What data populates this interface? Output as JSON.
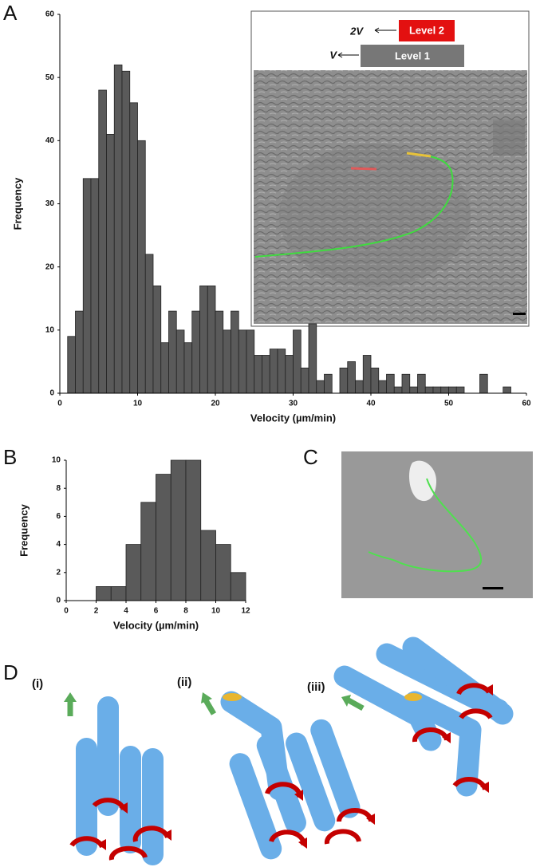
{
  "panels": {
    "a": "A",
    "b": "B",
    "c": "C",
    "d": "D"
  },
  "inset": {
    "level2_speed": "2V",
    "level2": "Level 2",
    "level1_speed": "V",
    "level1": "Level 1"
  },
  "diagram": {
    "labels": [
      "(i)",
      "(ii)",
      "(iii)"
    ]
  },
  "chart_data": [
    {
      "type": "histogram",
      "y_label": "Frequency",
      "x_label": "Velocity (µm/min)",
      "color": "#5a5a5a",
      "bins": [
        1,
        2,
        3,
        4,
        5,
        6,
        7,
        8,
        9,
        10,
        11,
        12,
        13,
        14,
        15,
        16,
        17,
        18,
        19,
        20,
        21,
        22,
        23,
        24,
        25,
        26,
        27,
        28,
        29,
        30,
        31,
        32,
        33,
        34,
        35,
        36,
        37,
        38,
        39,
        40,
        41,
        42,
        43,
        44,
        45,
        46,
        47,
        48,
        49,
        50,
        51,
        52,
        53,
        54,
        55,
        56,
        57,
        58
      ],
      "values": [
        9,
        13,
        34,
        34,
        48,
        41,
        52,
        51,
        46,
        40,
        22,
        17,
        8,
        13,
        10,
        8,
        13,
        17,
        17,
        13,
        10,
        13,
        10,
        10,
        6,
        6,
        7,
        7,
        6,
        10,
        4,
        11,
        2,
        3,
        0,
        4,
        5,
        2,
        6,
        4,
        2,
        3,
        1,
        3,
        1,
        3,
        1,
        1,
        1,
        1,
        1,
        0,
        0,
        3,
        0,
        0,
        1
      ],
      "xlim": [
        0,
        60
      ],
      "xticks": [
        0,
        10,
        20,
        30,
        40,
        50,
        60
      ],
      "ylim": [
        0,
        60
      ],
      "yticks": [
        0,
        10,
        20,
        30,
        40,
        50,
        60
      ]
    },
    {
      "type": "histogram",
      "y_label": "Frequency",
      "x_label": "Velocity (µm/min)",
      "color": "#5a5a5a",
      "bins": [
        2,
        3,
        4,
        5,
        6,
        7,
        8,
        9,
        10,
        11,
        12
      ],
      "values": [
        1,
        1,
        4,
        7,
        9,
        10,
        10,
        5,
        4,
        2
      ],
      "xlim": [
        0,
        12
      ],
      "xticks": [
        0,
        2,
        4,
        6,
        8,
        10,
        12
      ],
      "ylim": [
        0,
        10
      ],
      "yticks": [
        0,
        2,
        4,
        6,
        8,
        10
      ]
    }
  ]
}
